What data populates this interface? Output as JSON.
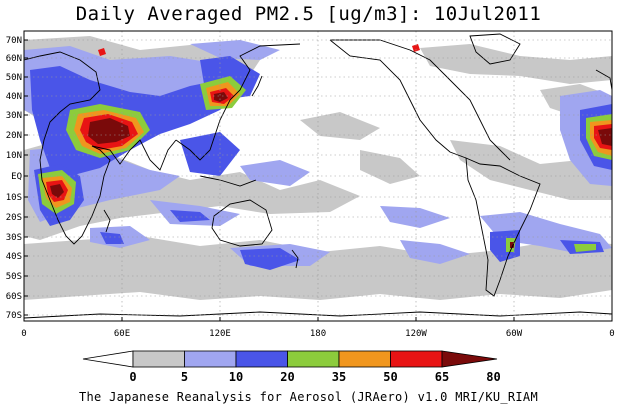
{
  "title": "Daily Averaged PM2.5 [ug/m3]: 10Jul2011",
  "footer": "The Japanese Reanalysis for Aerosol (JRAero) v1.0 MRI/KU_RIAM",
  "map": {
    "lat_labels": [
      "70N",
      "60N",
      "50N",
      "40N",
      "30N",
      "20N",
      "10N",
      "EQ",
      "10S",
      "20S",
      "30S",
      "40S",
      "50S",
      "60S",
      "70S"
    ],
    "lon_labels": [
      "0",
      "60E",
      "120E",
      "180",
      "120W",
      "60W",
      "0"
    ]
  },
  "colorbar": {
    "ticks": [
      "0",
      "5",
      "10",
      "20",
      "35",
      "50",
      "65",
      "80"
    ],
    "colors": [
      "#ffffff",
      "#c8c8c8",
      "#a0a6f0",
      "#4a55e8",
      "#8ccc3c",
      "#f0961e",
      "#e81414",
      "#7a0a0a"
    ]
  }
}
